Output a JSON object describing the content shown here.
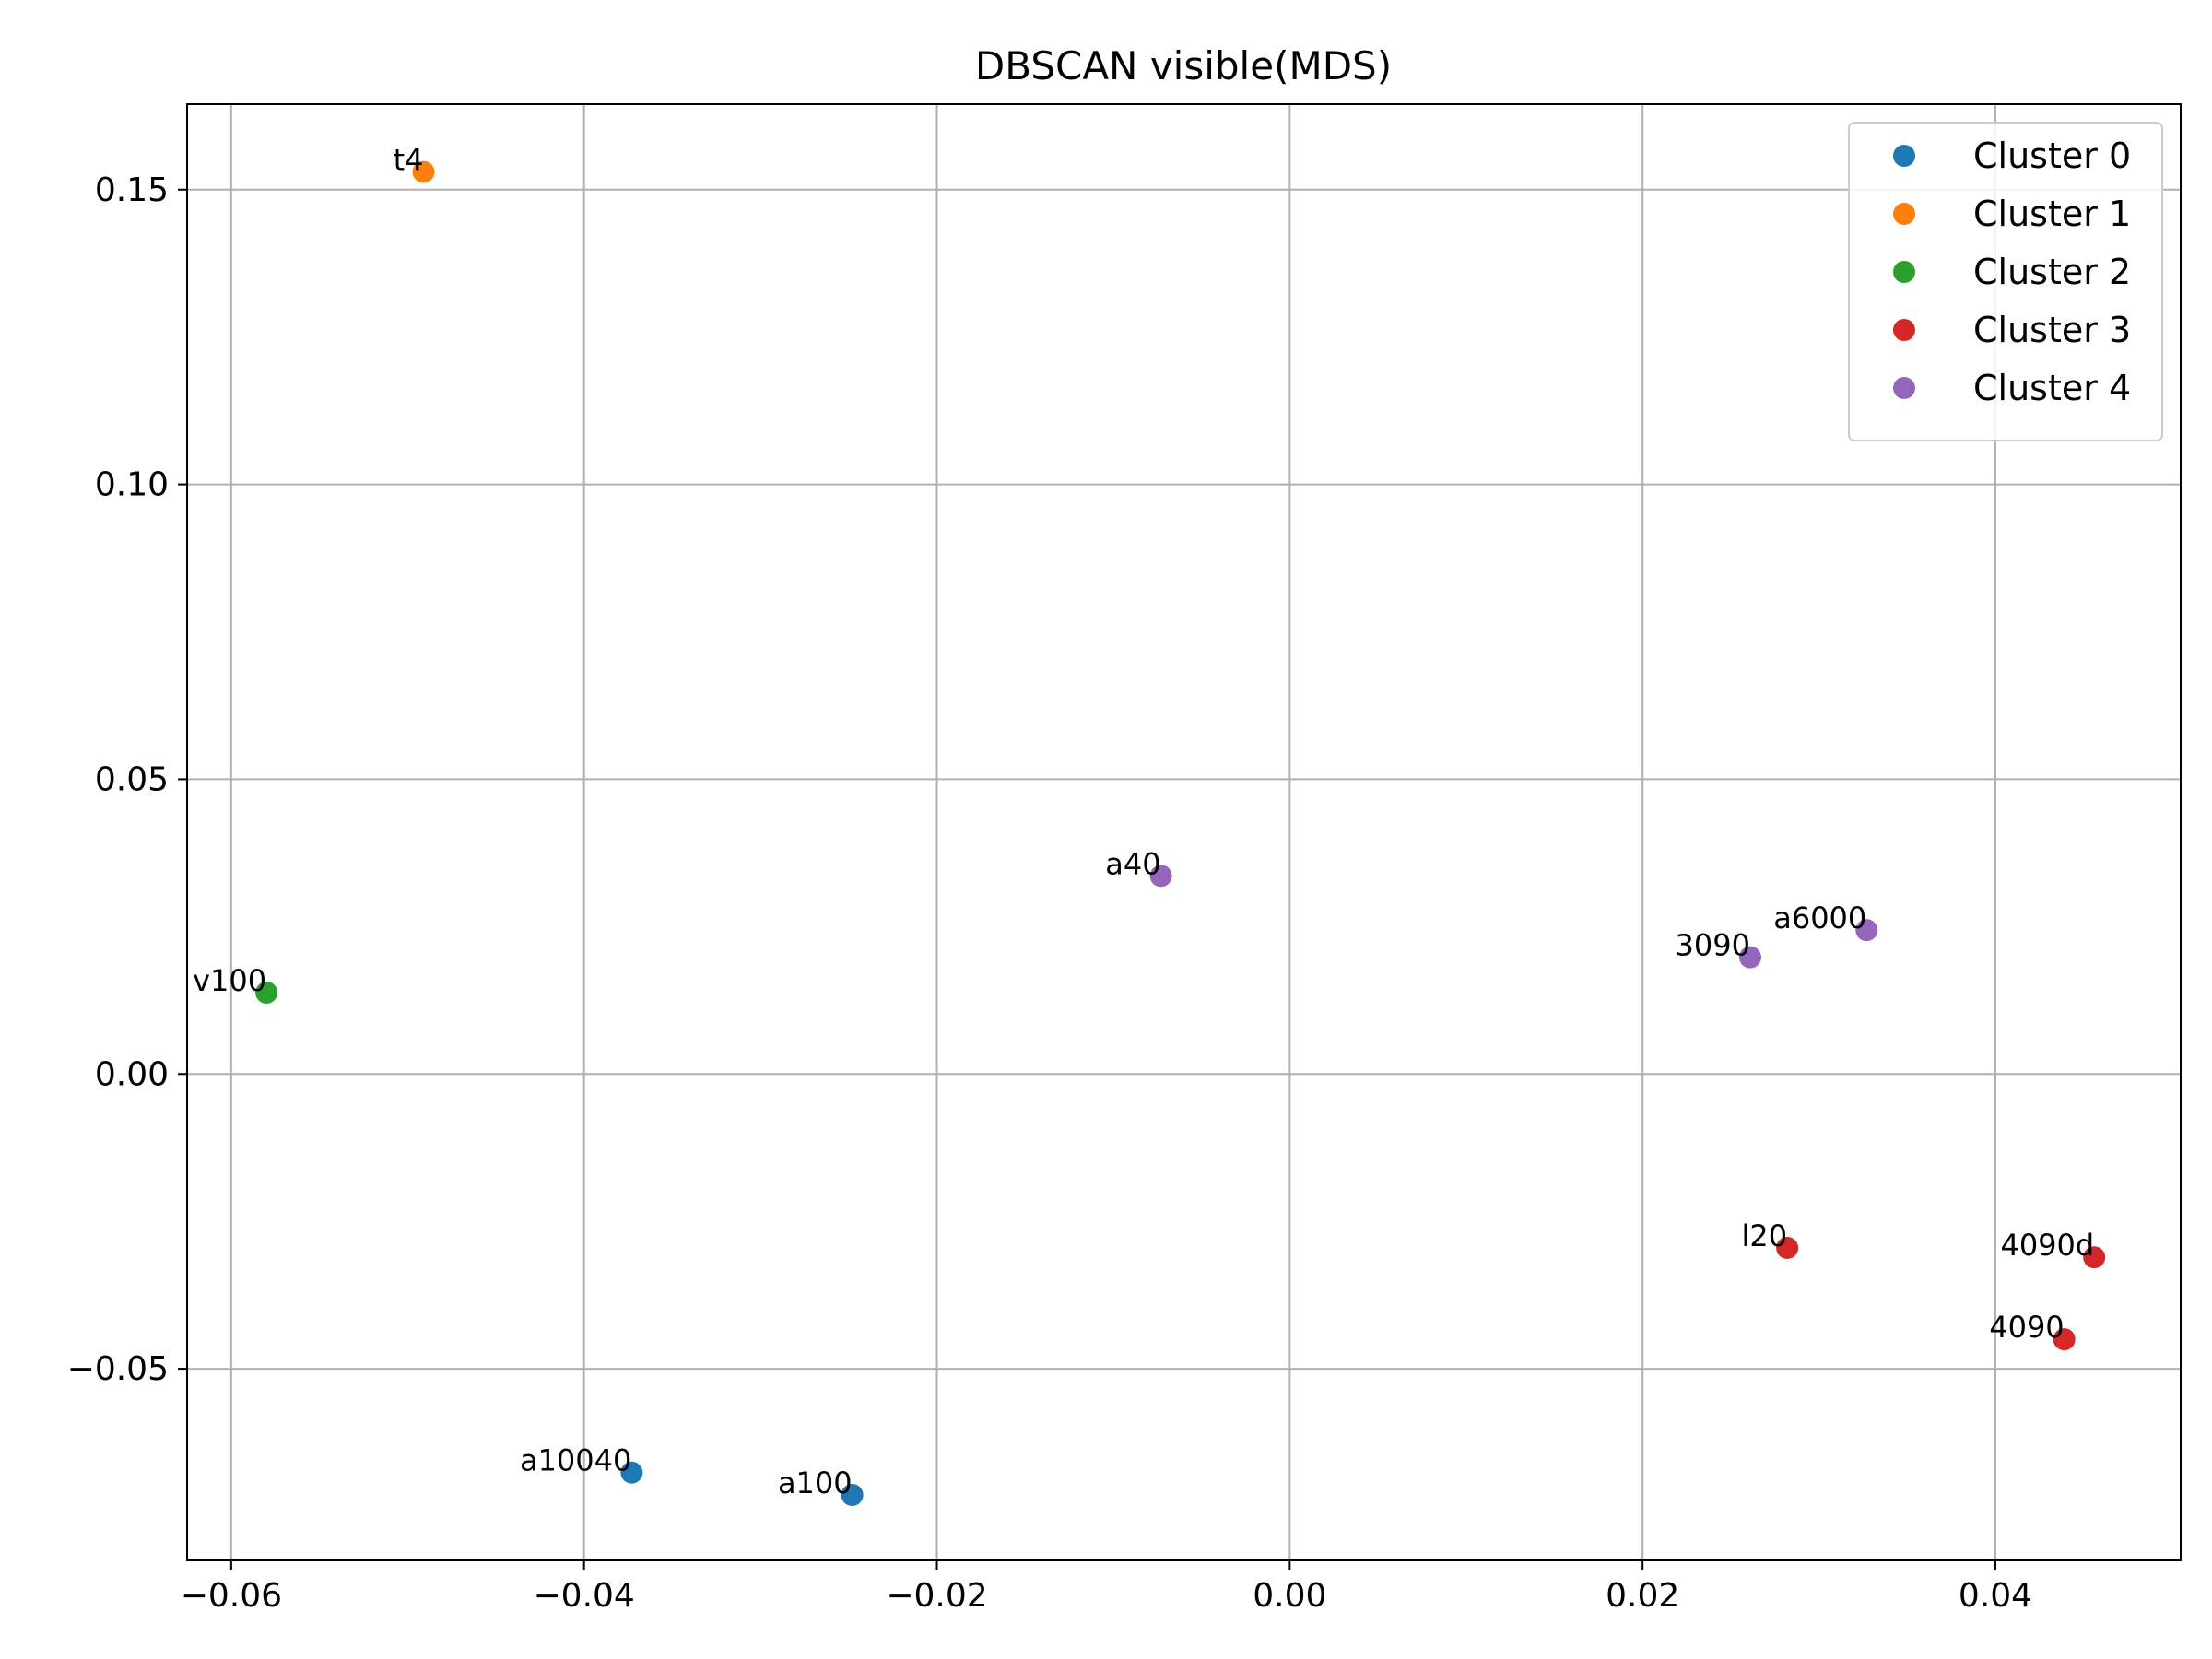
{
  "chart_data": {
    "type": "scatter",
    "title": "DBSCAN visible(MDS)",
    "xlabel": "",
    "ylabel": "",
    "xlim": [
      -0.0625,
      0.0505
    ],
    "ylim": [
      -0.0825,
      0.1645
    ],
    "grid": true,
    "legend_position": "top-right",
    "x_ticks": [
      {
        "value": -0.06,
        "label": "−0.06"
      },
      {
        "value": -0.04,
        "label": "−0.04"
      },
      {
        "value": -0.02,
        "label": "−0.02"
      },
      {
        "value": 0.0,
        "label": "0.00"
      },
      {
        "value": 0.02,
        "label": "0.02"
      },
      {
        "value": 0.04,
        "label": "0.04"
      }
    ],
    "y_ticks": [
      {
        "value": -0.05,
        "label": "−0.05"
      },
      {
        "value": 0.0,
        "label": "0.00"
      },
      {
        "value": 0.05,
        "label": "0.05"
      },
      {
        "value": 0.1,
        "label": "0.10"
      },
      {
        "value": 0.15,
        "label": "0.15"
      }
    ],
    "series": [
      {
        "name": "Cluster 0",
        "color": "#1f77b4",
        "points": [
          {
            "label": "a10040",
            "x": -0.0373,
            "y": -0.0676
          },
          {
            "label": "a100",
            "x": -0.0248,
            "y": -0.0714
          }
        ]
      },
      {
        "name": "Cluster 1",
        "color": "#ff7f0e",
        "points": [
          {
            "label": "t4",
            "x": -0.0491,
            "y": 0.153
          }
        ]
      },
      {
        "name": "Cluster 2",
        "color": "#2ca02c",
        "points": [
          {
            "label": "v100",
            "x": -0.058,
            "y": 0.0138
          }
        ]
      },
      {
        "name": "Cluster 3",
        "color": "#d62728",
        "points": [
          {
            "label": "l20",
            "x": 0.0282,
            "y": -0.0295
          },
          {
            "label": "4090d",
            "x": 0.0456,
            "y": -0.0311
          },
          {
            "label": "4090",
            "x": 0.0439,
            "y": -0.045
          }
        ]
      },
      {
        "name": "Cluster 4",
        "color": "#9467bd",
        "points": [
          {
            "label": "a40",
            "x": -0.0073,
            "y": 0.0336
          },
          {
            "label": "3090",
            "x": 0.0261,
            "y": 0.0198
          },
          {
            "label": "a6000",
            "x": 0.0327,
            "y": 0.0244
          }
        ]
      }
    ]
  }
}
